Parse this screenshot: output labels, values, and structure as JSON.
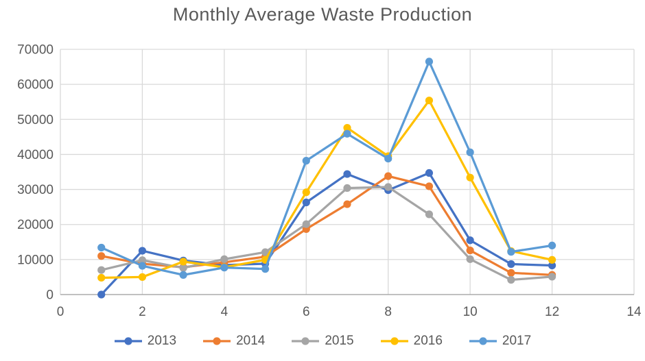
{
  "title": "Monthly Average Waste Production",
  "chart_data": {
    "type": "line",
    "title": "Monthly Average Waste Production",
    "xlabel": "",
    "ylabel": "",
    "xlim": [
      0,
      14
    ],
    "ylim": [
      0,
      70000
    ],
    "xticks": [
      0,
      2,
      4,
      6,
      8,
      10,
      12,
      14
    ],
    "yticks": [
      0,
      10000,
      20000,
      30000,
      40000,
      50000,
      60000,
      70000
    ],
    "xtick_labels": [
      "0",
      "2",
      "4",
      "6",
      "8",
      "10",
      "12",
      "14"
    ],
    "ytick_labels": [
      "0",
      "10000",
      "20000",
      "30000",
      "40000",
      "50000",
      "60000",
      "70000"
    ],
    "grid": true,
    "legend_position": "bottom",
    "marker": "circle",
    "x": [
      1,
      2,
      3,
      4,
      5,
      6,
      7,
      8,
      9,
      10,
      11,
      12
    ],
    "series": [
      {
        "name": "2013",
        "color": "#4472C4",
        "values": [
          0,
          12500,
          9700,
          8400,
          8800,
          26300,
          34400,
          29800,
          34700,
          15500,
          8700,
          8300
        ]
      },
      {
        "name": "2014",
        "color": "#ED7D31",
        "values": [
          11000,
          8800,
          7800,
          9200,
          10800,
          18700,
          25800,
          33800,
          30900,
          12600,
          6200,
          5600
        ]
      },
      {
        "name": "2015",
        "color": "#A5A5A5",
        "values": [
          7000,
          9800,
          7600,
          10100,
          12100,
          20100,
          30400,
          30700,
          22900,
          10100,
          4200,
          5100
        ]
      },
      {
        "name": "2016",
        "color": "#FFC000",
        "values": [
          4800,
          5000,
          9400,
          7800,
          9900,
          29200,
          47600,
          39500,
          55400,
          33400,
          12400,
          9900
        ]
      },
      {
        "name": "2017",
        "color": "#5B9BD5",
        "values": [
          13400,
          8200,
          5600,
          7700,
          7300,
          38200,
          45900,
          38800,
          66500,
          40600,
          12200,
          14000
        ]
      }
    ]
  },
  "style_colors": {
    "gridline": "#D9D9D9",
    "axis_line": "#ABABAB",
    "tick_label": "#595959",
    "title": "#595959"
  }
}
